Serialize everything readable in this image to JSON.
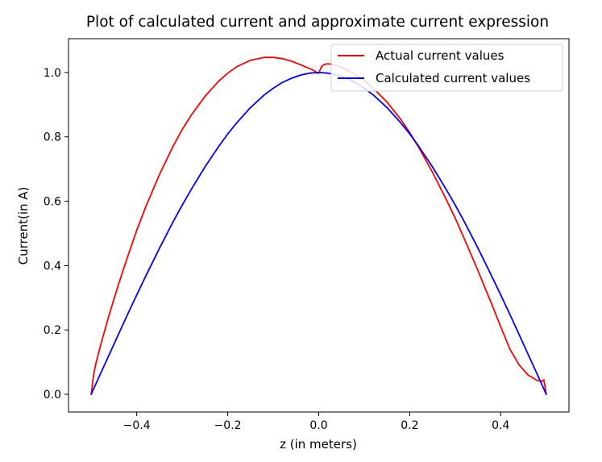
{
  "chart_data": {
    "type": "line",
    "title": "Plot of calculated current and approximate current expression",
    "xlabel": "z (in meters)",
    "ylabel": "Current(in A)",
    "xlim": [
      -0.55,
      0.55
    ],
    "ylim": [
      -0.055,
      1.105
    ],
    "xticks": [
      -0.4,
      -0.2,
      0.0,
      0.2,
      0.4
    ],
    "xtick_labels": [
      "−0.4",
      "−0.2",
      "0.0",
      "0.2",
      "0.4"
    ],
    "yticks": [
      0.0,
      0.2,
      0.4,
      0.6,
      0.8,
      1.0
    ],
    "ytick_labels": [
      "0.0",
      "0.2",
      "0.4",
      "0.6",
      "0.8",
      "1.0"
    ],
    "grid": false,
    "legend": "top-right",
    "series": [
      {
        "name": "Actual current values",
        "color": "#ff0000",
        "x": [
          -0.5,
          -0.495,
          -0.49,
          -0.48,
          -0.46,
          -0.44,
          -0.42,
          -0.4,
          -0.38,
          -0.35,
          -0.32,
          -0.3,
          -0.28,
          -0.25,
          -0.22,
          -0.2,
          -0.18,
          -0.15,
          -0.12,
          -0.1,
          -0.08,
          -0.06,
          -0.04,
          -0.03,
          -0.02,
          -0.012,
          -0.006,
          -0.003,
          0.0,
          0.003,
          0.006,
          0.012,
          0.02,
          0.03,
          0.04,
          0.06,
          0.08,
          0.1,
          0.12,
          0.15,
          0.18,
          0.2,
          0.22,
          0.25,
          0.28,
          0.3,
          0.32,
          0.35,
          0.38,
          0.4,
          0.42,
          0.44,
          0.46,
          0.48,
          0.49,
          0.495,
          0.5
        ],
        "y": [
          0.0,
          0.06,
          0.095,
          0.15,
          0.25,
          0.342,
          0.428,
          0.51,
          0.584,
          0.683,
          0.771,
          0.823,
          0.868,
          0.926,
          0.973,
          0.998,
          1.018,
          1.038,
          1.047,
          1.047,
          1.043,
          1.035,
          1.024,
          1.018,
          1.012,
          1.007,
          1.002,
          0.998,
          0.998,
          1.008,
          1.018,
          1.025,
          1.027,
          1.025,
          1.021,
          1.009,
          0.994,
          0.975,
          0.951,
          0.908,
          0.855,
          0.813,
          0.767,
          0.69,
          0.606,
          0.547,
          0.483,
          0.384,
          0.281,
          0.21,
          0.141,
          0.092,
          0.06,
          0.043,
          0.04,
          0.045,
          0.0
        ]
      },
      {
        "name": "Calculated current values",
        "color": "#0000ff",
        "x": [
          -0.5,
          -0.48,
          -0.46,
          -0.44,
          -0.42,
          -0.4,
          -0.38,
          -0.35,
          -0.32,
          -0.3,
          -0.28,
          -0.25,
          -0.22,
          -0.2,
          -0.18,
          -0.15,
          -0.12,
          -0.1,
          -0.08,
          -0.06,
          -0.04,
          -0.02,
          0.0,
          0.02,
          0.04,
          0.06,
          0.08,
          0.1,
          0.12,
          0.15,
          0.18,
          0.2,
          0.22,
          0.25,
          0.28,
          0.3,
          0.32,
          0.35,
          0.38,
          0.4,
          0.42,
          0.44,
          0.46,
          0.48,
          0.5
        ],
        "y": [
          0.0,
          0.063,
          0.125,
          0.187,
          0.249,
          0.309,
          0.368,
          0.454,
          0.536,
          0.588,
          0.637,
          0.707,
          0.77,
          0.809,
          0.844,
          0.891,
          0.93,
          0.951,
          0.969,
          0.982,
          0.992,
          0.998,
          1.0,
          0.998,
          0.992,
          0.982,
          0.969,
          0.951,
          0.93,
          0.891,
          0.844,
          0.809,
          0.77,
          0.707,
          0.637,
          0.588,
          0.536,
          0.454,
          0.368,
          0.309,
          0.249,
          0.187,
          0.125,
          0.063,
          0.0
        ]
      }
    ]
  }
}
